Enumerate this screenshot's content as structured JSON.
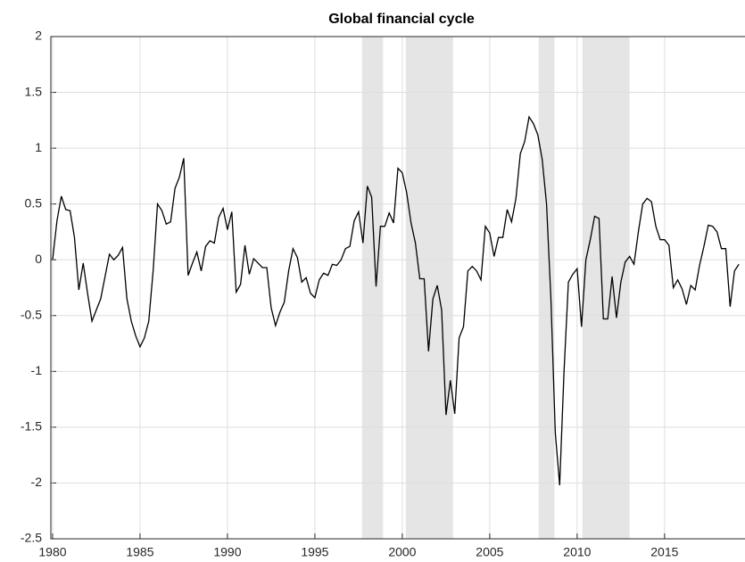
{
  "chart_data": {
    "type": "line",
    "title": "Global financial cycle",
    "x": [
      1980.0,
      1980.25,
      1980.5,
      1980.75,
      1981.0,
      1981.25,
      1981.5,
      1981.75,
      1982.0,
      1982.25,
      1982.5,
      1982.75,
      1983.0,
      1983.25,
      1983.5,
      1983.75,
      1984.0,
      1984.25,
      1984.5,
      1984.75,
      1985.0,
      1985.25,
      1985.5,
      1985.75,
      1986.0,
      1986.25,
      1986.5,
      1986.75,
      1987.0,
      1987.25,
      1987.5,
      1987.75,
      1988.0,
      1988.25,
      1988.5,
      1988.75,
      1989.0,
      1989.25,
      1989.5,
      1989.75,
      1990.0,
      1990.25,
      1990.5,
      1990.75,
      1991.0,
      1991.25,
      1991.5,
      1991.75,
      1992.0,
      1992.25,
      1992.5,
      1992.75,
      1993.0,
      1993.25,
      1993.5,
      1993.75,
      1994.0,
      1994.25,
      1994.5,
      1994.75,
      1995.0,
      1995.25,
      1995.5,
      1995.75,
      1996.0,
      1996.25,
      1996.5,
      1996.75,
      1997.0,
      1997.25,
      1997.5,
      1997.75,
      1998.0,
      1998.25,
      1998.5,
      1998.75,
      1999.0,
      1999.25,
      1999.5,
      1999.75,
      2000.0,
      2000.25,
      2000.5,
      2000.75,
      2001.0,
      2001.25,
      2001.5,
      2001.75,
      2002.0,
      2002.25,
      2002.5,
      2002.75,
      2003.0,
      2003.25,
      2003.5,
      2003.75,
      2004.0,
      2004.25,
      2004.5,
      2004.75,
      2005.0,
      2005.25,
      2005.5,
      2005.75,
      2006.0,
      2006.25,
      2006.5,
      2006.75,
      2007.0,
      2007.25,
      2007.5,
      2007.75,
      2008.0,
      2008.25,
      2008.5,
      2008.75,
      2009.0,
      2009.25,
      2009.5,
      2009.75,
      2010.0,
      2010.25,
      2010.5,
      2010.75,
      2011.0,
      2011.25,
      2011.5,
      2011.75,
      2012.0,
      2012.25,
      2012.5,
      2012.75,
      2013.0,
      2013.25,
      2013.5,
      2013.75,
      2014.0,
      2014.25,
      2014.5,
      2014.75,
      2015.0,
      2015.25,
      2015.5,
      2015.75,
      2016.0,
      2016.25,
      2016.5,
      2016.75,
      2017.0,
      2017.25,
      2017.5,
      2017.75,
      2018.0,
      2018.25,
      2018.5,
      2018.75,
      2019.0,
      2019.25
    ],
    "values": [
      0.0,
      0.35,
      0.57,
      0.45,
      0.44,
      0.2,
      -0.27,
      -0.03,
      -0.3,
      -0.55,
      -0.45,
      -0.35,
      -0.15,
      0.05,
      0.0,
      0.04,
      0.11,
      -0.35,
      -0.55,
      -0.68,
      -0.78,
      -0.7,
      -0.55,
      -0.1,
      0.5,
      0.44,
      0.32,
      0.34,
      0.64,
      0.74,
      0.91,
      -0.14,
      -0.03,
      0.07,
      -0.1,
      0.12,
      0.17,
      0.15,
      0.38,
      0.46,
      0.27,
      0.43,
      -0.29,
      -0.22,
      0.13,
      -0.13,
      0.01,
      -0.03,
      -0.07,
      -0.07,
      -0.43,
      -0.59,
      -0.47,
      -0.38,
      -0.1,
      0.1,
      0.02,
      -0.2,
      -0.16,
      -0.3,
      -0.34,
      -0.18,
      -0.12,
      -0.14,
      -0.04,
      -0.05,
      0.0,
      0.1,
      0.12,
      0.35,
      0.43,
      0.15,
      0.66,
      0.56,
      -0.24,
      0.3,
      0.3,
      0.42,
      0.33,
      0.82,
      0.78,
      0.6,
      0.33,
      0.15,
      -0.17,
      -0.17,
      -0.82,
      -0.35,
      -0.23,
      -0.45,
      -1.39,
      -1.08,
      -1.38,
      -0.7,
      -0.6,
      -0.1,
      -0.06,
      -0.1,
      -0.18,
      0.3,
      0.24,
      0.03,
      0.2,
      0.2,
      0.45,
      0.34,
      0.55,
      0.95,
      1.06,
      1.28,
      1.22,
      1.12,
      0.9,
      0.5,
      -0.35,
      -1.55,
      -2.02,
      -1.0,
      -0.2,
      -0.13,
      -0.08,
      -0.6,
      0.0,
      0.18,
      0.39,
      0.37,
      -0.53,
      -0.53,
      -0.15,
      -0.52,
      -0.2,
      -0.02,
      0.03,
      -0.04,
      0.25,
      0.5,
      0.55,
      0.52,
      0.3,
      0.18,
      0.18,
      0.13,
      -0.25,
      -0.18,
      -0.26,
      -0.4,
      -0.23,
      -0.27,
      -0.05,
      0.12,
      0.31,
      0.3,
      0.25,
      0.1,
      0.1,
      -0.42,
      -0.1,
      -0.04
    ],
    "color": "#000000",
    "shaded_regions": [
      [
        1997.7,
        1998.9
      ],
      [
        2000.2,
        2002.9
      ],
      [
        2007.8,
        2008.7
      ],
      [
        2010.3,
        2013.0
      ]
    ],
    "shade_color": "#e5e5e5",
    "xlim": [
      1979.9,
      2019.6
    ],
    "xticks": [
      1980,
      1985,
      1990,
      1995,
      2000,
      2005,
      2010,
      2015
    ],
    "ylim": [
      -2.5,
      2
    ],
    "yticks": [
      -2.5,
      -2,
      -1.5,
      -1,
      -0.5,
      0,
      0.5,
      1,
      1.5,
      2
    ],
    "grid": true
  }
}
